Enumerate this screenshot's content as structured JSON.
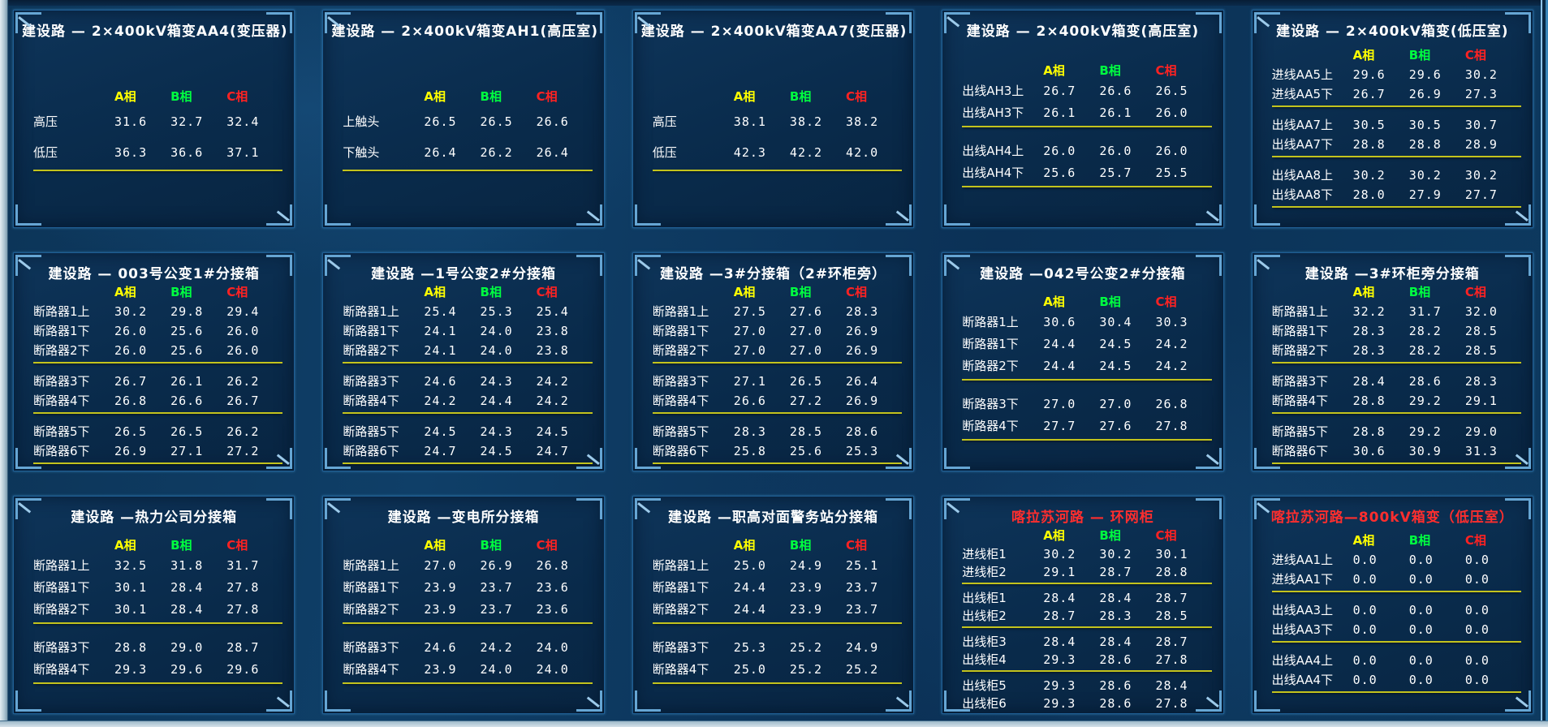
{
  "ui": {
    "phase_headers": [
      "A相",
      "B相",
      "C相"
    ],
    "colors": {
      "phase_a": "#ffff00",
      "phase_b": "#00ff40",
      "phase_c": "#ff2222",
      "title_normal": "#ffffff",
      "title_alert": "#ff2e2e",
      "separator": "#c3c31d",
      "panel_border": "#1f5e94",
      "background": "#0e3c63",
      "value_text": "#ffffff"
    }
  },
  "panels": [
    {
      "title": "建设路 — 2×400kV箱变AA4(变压器)",
      "title_style": "normal",
      "groups": [
        {
          "rows": [
            {
              "label": "高压",
              "values": [
                "31.6",
                "32.7",
                "32.4"
              ]
            },
            {
              "label": "低压",
              "values": [
                "36.3",
                "36.6",
                "37.1"
              ]
            }
          ]
        }
      ]
    },
    {
      "title": "建设路 — 2×400kV箱变AH1(高压室)",
      "title_style": "normal",
      "groups": [
        {
          "rows": [
            {
              "label": "上触头",
              "values": [
                "26.5",
                "26.5",
                "26.6"
              ]
            },
            {
              "label": "下触头",
              "values": [
                "26.4",
                "26.2",
                "26.4"
              ]
            }
          ]
        }
      ]
    },
    {
      "title": "建设路 — 2×400kV箱变AA7(变压器)",
      "title_style": "normal",
      "groups": [
        {
          "rows": [
            {
              "label": "高压",
              "values": [
                "38.1",
                "38.2",
                "38.2"
              ]
            },
            {
              "label": "低压",
              "values": [
                "42.3",
                "42.2",
                "42.0"
              ]
            }
          ]
        }
      ]
    },
    {
      "title": "建设路 — 2×400kV箱变(高压室)",
      "title_style": "normal",
      "groups": [
        {
          "rows": [
            {
              "label": "出线AH3上",
              "values": [
                "26.7",
                "26.6",
                "26.5"
              ]
            },
            {
              "label": "出线AH3下",
              "values": [
                "26.1",
                "26.1",
                "26.0"
              ]
            }
          ]
        },
        {
          "rows": [
            {
              "label": "出线AH4上",
              "values": [
                "26.0",
                "26.0",
                "26.0"
              ]
            },
            {
              "label": "出线AH4下",
              "values": [
                "25.6",
                "25.7",
                "25.5"
              ]
            }
          ]
        }
      ]
    },
    {
      "title": "建设路 — 2×400kV箱变(低压室)",
      "title_style": "normal",
      "groups": [
        {
          "rows": [
            {
              "label": "进线AA5上",
              "values": [
                "29.6",
                "29.6",
                "30.2"
              ]
            },
            {
              "label": "进线AA5下",
              "values": [
                "26.7",
                "26.9",
                "27.3"
              ]
            }
          ]
        },
        {
          "rows": [
            {
              "label": "出线AA7上",
              "values": [
                "30.5",
                "30.5",
                "30.7"
              ]
            },
            {
              "label": "出线AA7下",
              "values": [
                "28.8",
                "28.8",
                "28.9"
              ]
            }
          ]
        },
        {
          "rows": [
            {
              "label": "出线AA8上",
              "values": [
                "30.2",
                "30.2",
                "30.2"
              ]
            },
            {
              "label": "出线AA8下",
              "values": [
                "28.0",
                "27.9",
                "27.7"
              ]
            }
          ]
        }
      ]
    },
    {
      "title": "建设路 — 003号公变1#分接箱",
      "title_style": "normal",
      "groups": [
        {
          "rows": [
            {
              "label": "断路器1上",
              "values": [
                "30.2",
                "29.8",
                "29.4"
              ]
            },
            {
              "label": "断路器1下",
              "values": [
                "26.0",
                "25.6",
                "26.0"
              ]
            },
            {
              "label": "断路器2下",
              "values": [
                "26.0",
                "25.6",
                "26.0"
              ]
            }
          ]
        },
        {
          "rows": [
            {
              "label": "断路器3下",
              "values": [
                "26.7",
                "26.1",
                "26.2"
              ]
            },
            {
              "label": "断路器4下",
              "values": [
                "26.8",
                "26.6",
                "26.7"
              ]
            }
          ]
        },
        {
          "rows": [
            {
              "label": "断路器5下",
              "values": [
                "26.5",
                "26.5",
                "26.2"
              ]
            },
            {
              "label": "断路器6下",
              "values": [
                "26.9",
                "27.1",
                "27.2"
              ]
            }
          ]
        }
      ]
    },
    {
      "title": "建设路 —1号公变2#分接箱",
      "title_style": "normal",
      "groups": [
        {
          "rows": [
            {
              "label": "断路器1上",
              "values": [
                "25.4",
                "25.3",
                "25.4"
              ]
            },
            {
              "label": "断路器1下",
              "values": [
                "24.1",
                "24.0",
                "23.8"
              ]
            },
            {
              "label": "断路器2下",
              "values": [
                "24.1",
                "24.0",
                "23.8"
              ]
            }
          ]
        },
        {
          "rows": [
            {
              "label": "断路器3下",
              "values": [
                "24.6",
                "24.3",
                "24.2"
              ]
            },
            {
              "label": "断路器4下",
              "values": [
                "24.2",
                "24.4",
                "24.2"
              ]
            }
          ]
        },
        {
          "rows": [
            {
              "label": "断路器5下",
              "values": [
                "24.5",
                "24.3",
                "24.5"
              ]
            },
            {
              "label": "断路器6下",
              "values": [
                "24.7",
                "24.5",
                "24.7"
              ]
            }
          ]
        }
      ]
    },
    {
      "title": "建设路 —3#分接箱（2#环柜旁）",
      "title_style": "normal",
      "groups": [
        {
          "rows": [
            {
              "label": "断路器1上",
              "values": [
                "27.5",
                "27.6",
                "28.3"
              ]
            },
            {
              "label": "断路器1下",
              "values": [
                "27.0",
                "27.0",
                "26.9"
              ]
            },
            {
              "label": "断路器2下",
              "values": [
                "27.0",
                "27.0",
                "26.9"
              ]
            }
          ]
        },
        {
          "rows": [
            {
              "label": "断路器3下",
              "values": [
                "27.1",
                "26.5",
                "26.4"
              ]
            },
            {
              "label": "断路器4下",
              "values": [
                "26.6",
                "27.2",
                "26.9"
              ]
            }
          ]
        },
        {
          "rows": [
            {
              "label": "断路器5下",
              "values": [
                "28.3",
                "28.5",
                "28.6"
              ]
            },
            {
              "label": "断路器6下",
              "values": [
                "25.8",
                "25.6",
                "25.3"
              ]
            }
          ]
        }
      ]
    },
    {
      "title": "建设路 —042号公变2#分接箱",
      "title_style": "normal",
      "groups": [
        {
          "rows": [
            {
              "label": "断路器1上",
              "values": [
                "30.6",
                "30.4",
                "30.3"
              ]
            },
            {
              "label": "断路器1下",
              "values": [
                "24.4",
                "24.5",
                "24.2"
              ]
            },
            {
              "label": "断路器2下",
              "values": [
                "24.4",
                "24.5",
                "24.2"
              ]
            }
          ]
        },
        {
          "rows": [
            {
              "label": "断路器3下",
              "values": [
                "27.0",
                "27.0",
                "26.8"
              ]
            },
            {
              "label": "断路器4下",
              "values": [
                "27.7",
                "27.6",
                "27.8"
              ]
            }
          ]
        }
      ]
    },
    {
      "title": "建设路 —3#环柜旁分接箱",
      "title_style": "normal",
      "groups": [
        {
          "rows": [
            {
              "label": "断路器1上",
              "values": [
                "32.2",
                "31.7",
                "32.0"
              ]
            },
            {
              "label": "断路器1下",
              "values": [
                "28.3",
                "28.2",
                "28.5"
              ]
            },
            {
              "label": "断路器2下",
              "values": [
                "28.3",
                "28.2",
                "28.5"
              ]
            }
          ]
        },
        {
          "rows": [
            {
              "label": "断路器3下",
              "values": [
                "28.4",
                "28.6",
                "28.3"
              ]
            },
            {
              "label": "断路器4下",
              "values": [
                "28.8",
                "29.2",
                "29.1"
              ]
            }
          ]
        },
        {
          "rows": [
            {
              "label": "断路器5下",
              "values": [
                "28.8",
                "29.2",
                "29.0"
              ]
            },
            {
              "label": "断路器6下",
              "values": [
                "30.6",
                "30.9",
                "31.3"
              ]
            }
          ]
        }
      ]
    },
    {
      "title": "建设路 —热力公司分接箱",
      "title_style": "normal",
      "groups": [
        {
          "rows": [
            {
              "label": "断路器1上",
              "values": [
                "32.5",
                "31.8",
                "31.7"
              ]
            },
            {
              "label": "断路器1下",
              "values": [
                "30.1",
                "28.4",
                "27.8"
              ]
            },
            {
              "label": "断路器2下",
              "values": [
                "30.1",
                "28.4",
                "27.8"
              ]
            }
          ]
        },
        {
          "rows": [
            {
              "label": "断路器3下",
              "values": [
                "28.8",
                "29.0",
                "28.7"
              ]
            },
            {
              "label": "断路器4下",
              "values": [
                "29.3",
                "29.6",
                "29.6"
              ]
            }
          ]
        }
      ]
    },
    {
      "title": "建设路 —变电所分接箱",
      "title_style": "normal",
      "groups": [
        {
          "rows": [
            {
              "label": "断路器1上",
              "values": [
                "27.0",
                "26.9",
                "26.8"
              ]
            },
            {
              "label": "断路器1下",
              "values": [
                "23.9",
                "23.7",
                "23.6"
              ]
            },
            {
              "label": "断路器2下",
              "values": [
                "23.9",
                "23.7",
                "23.6"
              ]
            }
          ]
        },
        {
          "rows": [
            {
              "label": "断路器3下",
              "values": [
                "24.6",
                "24.2",
                "24.0"
              ]
            },
            {
              "label": "断路器4下",
              "values": [
                "23.9",
                "24.0",
                "24.0"
              ]
            }
          ]
        }
      ]
    },
    {
      "title": "建设路 —职高对面警务站分接箱",
      "title_style": "normal",
      "groups": [
        {
          "rows": [
            {
              "label": "断路器1上",
              "values": [
                "25.0",
                "24.9",
                "25.1"
              ]
            },
            {
              "label": "断路器1下",
              "values": [
                "24.4",
                "23.9",
                "23.7"
              ]
            },
            {
              "label": "断路器2下",
              "values": [
                "24.4",
                "23.9",
                "23.7"
              ]
            }
          ]
        },
        {
          "rows": [
            {
              "label": "断路器3下",
              "values": [
                "25.3",
                "25.2",
                "24.9"
              ]
            },
            {
              "label": "断路器4下",
              "values": [
                "25.0",
                "25.2",
                "25.2"
              ]
            }
          ]
        }
      ]
    },
    {
      "title": "喀拉苏河路 — 环网柜",
      "title_style": "alert",
      "groups": [
        {
          "rows": [
            {
              "label": "进线柜1",
              "values": [
                "30.2",
                "30.2",
                "30.1"
              ]
            },
            {
              "label": "进线柜2",
              "values": [
                "29.1",
                "28.7",
                "28.8"
              ]
            }
          ]
        },
        {
          "rows": [
            {
              "label": "出线柜1",
              "values": [
                "28.4",
                "28.4",
                "28.7"
              ]
            },
            {
              "label": "出线柜2",
              "values": [
                "28.7",
                "28.3",
                "28.5"
              ]
            }
          ]
        },
        {
          "rows": [
            {
              "label": "出线柜3",
              "values": [
                "28.4",
                "28.4",
                "28.7"
              ]
            },
            {
              "label": "出线柜4",
              "values": [
                "29.3",
                "28.6",
                "27.8"
              ]
            }
          ]
        },
        {
          "rows": [
            {
              "label": "出线柜5",
              "values": [
                "29.3",
                "28.6",
                "28.4"
              ]
            },
            {
              "label": "出线柜6",
              "values": [
                "29.3",
                "28.6",
                "27.8"
              ]
            }
          ]
        }
      ]
    },
    {
      "title": "喀拉苏河路—800kV箱变（低压室）",
      "title_style": "alert",
      "groups": [
        {
          "rows": [
            {
              "label": "进线AA1上",
              "values": [
                "0.0",
                "0.0",
                "0.0"
              ]
            },
            {
              "label": "进线AA1下",
              "values": [
                "0.0",
                "0.0",
                "0.0"
              ]
            }
          ]
        },
        {
          "rows": [
            {
              "label": "出线AA3上",
              "values": [
                "0.0",
                "0.0",
                "0.0"
              ]
            },
            {
              "label": "出线AA3下",
              "values": [
                "0.0",
                "0.0",
                "0.0"
              ]
            }
          ]
        },
        {
          "rows": [
            {
              "label": "出线AA4上",
              "values": [
                "0.0",
                "0.0",
                "0.0"
              ]
            },
            {
              "label": "出线AA4下",
              "values": [
                "0.0",
                "0.0",
                "0.0"
              ]
            }
          ]
        }
      ]
    }
  ]
}
